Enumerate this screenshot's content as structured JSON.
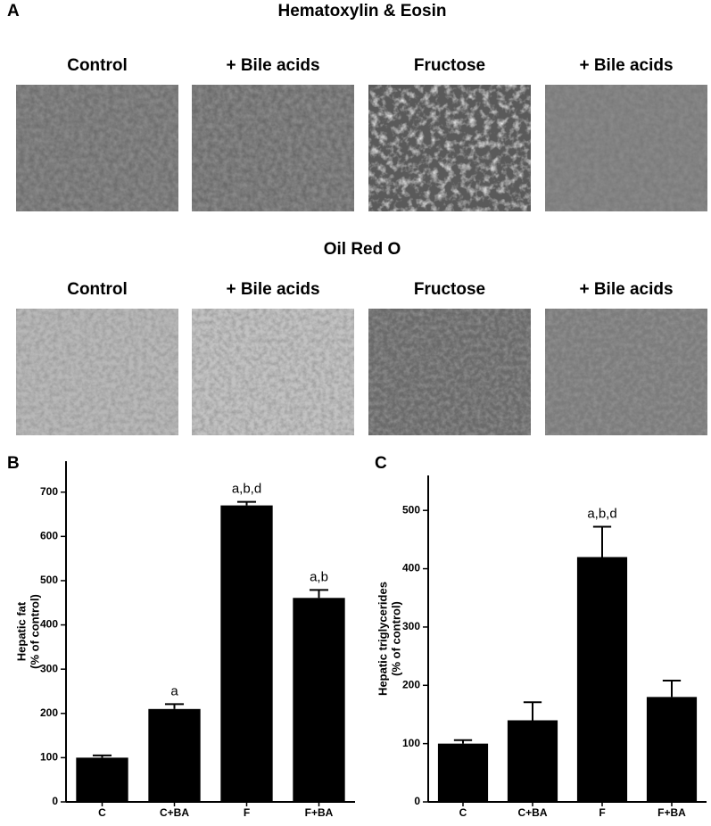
{
  "panel_a": {
    "label": "A",
    "sections": [
      {
        "title": "Hematoxylin & Eosin",
        "columns": [
          "Control",
          "+ Bile acids",
          "Fructose",
          "+ Bile acids"
        ]
      },
      {
        "title": "Oil Red O",
        "columns": [
          "Control",
          "+ Bile acids",
          "Fructose",
          "+ Bile acids"
        ]
      }
    ]
  },
  "chart_data": [
    {
      "type": "bar",
      "panel_label": "B",
      "y_label": [
        "Hepatic fat",
        "(% of control)"
      ],
      "categories": [
        "C",
        "C+BA",
        "F",
        "F+BA"
      ],
      "values": [
        100,
        210,
        670,
        461
      ],
      "errors": [
        5,
        11,
        8,
        18
      ],
      "annotations": [
        null,
        "a",
        "a,b,d",
        "a,b"
      ],
      "color": "#000000",
      "ylim": [
        0,
        770
      ],
      "yticks": [
        0,
        100,
        200,
        300,
        400,
        500,
        600,
        700
      ]
    },
    {
      "type": "bar",
      "panel_label": "C",
      "y_label": [
        "Hepatic triglycerides",
        "(% of control)"
      ],
      "categories": [
        "C",
        "C+BA",
        "F",
        "F+BA"
      ],
      "values": [
        100,
        140,
        420,
        180
      ],
      "errors": [
        6,
        31,
        52,
        28
      ],
      "annotations": [
        null,
        null,
        "a,b,d",
        null
      ],
      "color": "#000000",
      "ylim": [
        0,
        560
      ],
      "yticks": [
        0,
        100,
        200,
        300,
        400,
        500
      ]
    }
  ]
}
